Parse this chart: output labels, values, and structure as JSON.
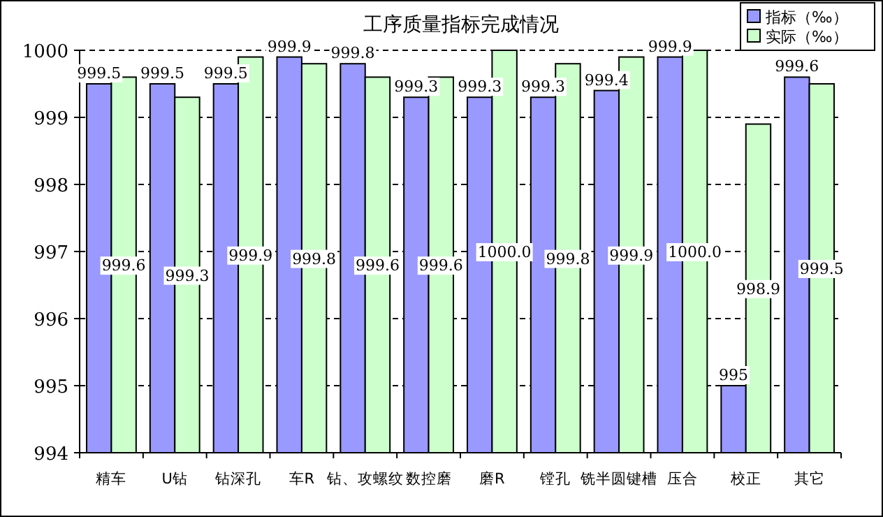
{
  "chart_data": {
    "type": "bar",
    "title": "工序质量指标完成情况",
    "categories": [
      "精车",
      "U钻",
      "钻深孔",
      "车R",
      "钻、攻螺纹",
      "数控磨",
      "磨R",
      "镗孔",
      "铣半圆键槽",
      "压合",
      "校正",
      "其它"
    ],
    "series": [
      {
        "name": "指标（‰）",
        "color": "#9999ff",
        "values": [
          999.5,
          999.5,
          999.5,
          999.9,
          999.8,
          999.3,
          999.3,
          999.3,
          999.4,
          999.9,
          995,
          999.6
        ],
        "value_labels": [
          "999.5",
          "999.5",
          "999.5",
          "999.9",
          "999.8",
          "999.3",
          "999.3",
          "999.3",
          "999.4",
          "999.9",
          "995",
          "999.6"
        ]
      },
      {
        "name": "实际（‰）",
        "color": "#ccffcc",
        "values": [
          999.6,
          999.3,
          999.9,
          999.8,
          999.6,
          999.6,
          1000.0,
          999.8,
          999.9,
          1000.0,
          998.9,
          999.5
        ],
        "value_labels": [
          "999.6",
          "999.3",
          "999.9",
          "999.8",
          "999.6",
          "999.6",
          "1000.0",
          "999.8",
          "999.9",
          "1000.0",
          "998.9",
          "999.5"
        ]
      }
    ],
    "ylim": [
      994,
      1000
    ],
    "yticks": [
      994,
      995,
      996,
      997,
      998,
      999,
      1000
    ],
    "grid": "y",
    "legend": "top right"
  }
}
